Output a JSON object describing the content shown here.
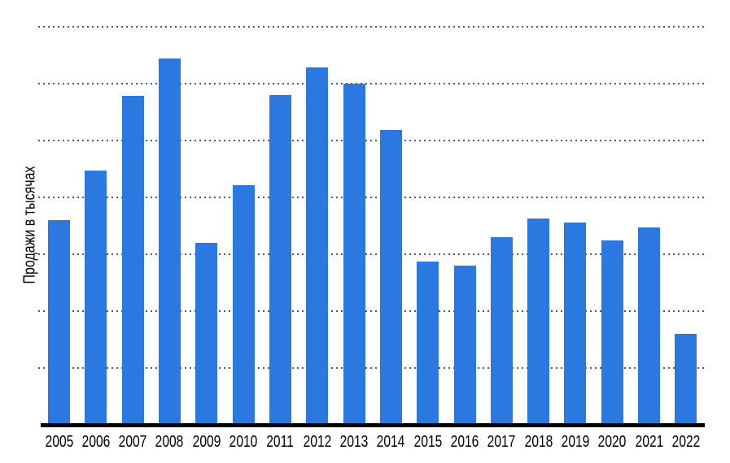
{
  "chart_data": {
    "type": "bar",
    "title": "",
    "xlabel": "",
    "ylabel": "Продажи в тысячах",
    "categories": [
      "2005",
      "2006",
      "2007",
      "2008",
      "2009",
      "2010",
      "2011",
      "2012",
      "2013",
      "2014",
      "2015",
      "2016",
      "2017",
      "2018",
      "2019",
      "2020",
      "2021",
      "2022"
    ],
    "values": [
      3.6,
      4.47,
      5.79,
      6.44,
      3.2,
      4.21,
      5.8,
      6.29,
      6.0,
      5.19,
      2.87,
      2.8,
      3.3,
      3.63,
      3.56,
      3.24,
      3.47,
      1.6
    ],
    "value_unit": "gridline intervals (y-axis has no numeric tick labels; values are heights measured in dotted-gridline spacings above the baseline)",
    "ylim": [
      0,
      7.5
    ],
    "grid": {
      "horizontal": true,
      "style": "dotted",
      "lines_visible": 7
    },
    "legend": "none",
    "colors": {
      "bar": "#2b78e1",
      "axis": "#000000",
      "gridline": "#555555",
      "label_text": "#000000",
      "background": "#ffffff"
    }
  }
}
